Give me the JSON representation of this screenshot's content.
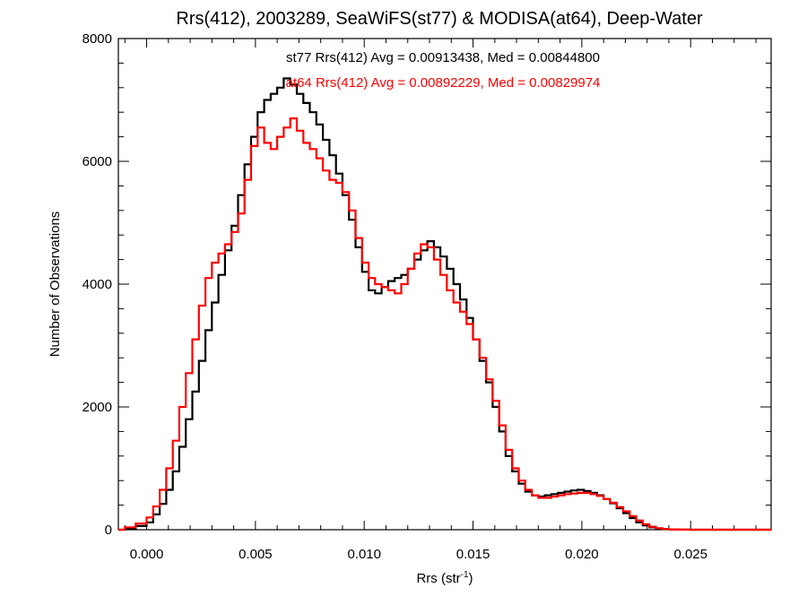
{
  "chart_data": {
    "type": "step",
    "title": "Rrs(412), 2003289, SeaWiFS(st77) & MODISA(at64), Deep-Water",
    "xlabel": "Rrs (str",
    "xlabel_sup": "-1",
    "xlabel_end": ")",
    "ylabel": "Number of Observations",
    "xlim": [
      -0.0013,
      0.0287
    ],
    "ylim": [
      0,
      8000
    ],
    "x_ticks": [
      0.0,
      0.005,
      0.01,
      0.015,
      0.02,
      0.025
    ],
    "x_tick_labels": [
      "0.000",
      "0.005",
      "0.010",
      "0.015",
      "0.020",
      "0.025"
    ],
    "y_ticks": [
      0,
      2000,
      4000,
      6000,
      8000
    ],
    "y_tick_labels": [
      "0",
      "2000",
      "4000",
      "6000",
      "8000"
    ],
    "annotations": [
      {
        "text": "st77 Rrs(412) Avg = 0.00913438, Med = 0.00844800",
        "color": "#000000"
      },
      {
        "text": "at64 Rrs(412) Avg = 0.00892229, Med = 0.00829974",
        "color": "#ff0000"
      }
    ],
    "series": [
      {
        "color": "#000000",
        "x": [
          -0.0013,
          -0.001,
          -0.0005,
          0.0,
          0.0003,
          0.0006,
          0.0009,
          0.0012,
          0.0015,
          0.0018,
          0.0021,
          0.0024,
          0.0027,
          0.003,
          0.0033,
          0.0036,
          0.0039,
          0.0042,
          0.0045,
          0.0048,
          0.0051,
          0.0054,
          0.0057,
          0.006,
          0.0063,
          0.0066,
          0.0069,
          0.0072,
          0.0075,
          0.0078,
          0.0081,
          0.0084,
          0.0087,
          0.009,
          0.0093,
          0.0096,
          0.0099,
          0.0102,
          0.0105,
          0.0108,
          0.0111,
          0.0114,
          0.0117,
          0.012,
          0.0123,
          0.0126,
          0.0129,
          0.0132,
          0.0135,
          0.0138,
          0.0141,
          0.0144,
          0.0147,
          0.015,
          0.0153,
          0.0156,
          0.0159,
          0.0162,
          0.0165,
          0.0168,
          0.0171,
          0.0174,
          0.0177,
          0.018,
          0.0183,
          0.0186,
          0.0189,
          0.0192,
          0.0195,
          0.0198,
          0.0201,
          0.0204,
          0.0207,
          0.021,
          0.0213,
          0.0216,
          0.0219,
          0.0222,
          0.0225,
          0.0228,
          0.0231,
          0.0234,
          0.0237,
          0.024,
          0.0245,
          0.025,
          0.026,
          0.0287
        ],
        "y": [
          0,
          20,
          60,
          120,
          250,
          420,
          650,
          950,
          1350,
          1800,
          2250,
          2750,
          3250,
          3700,
          4150,
          4550,
          4950,
          5450,
          5950,
          6400,
          6800,
          7000,
          7100,
          7200,
          7350,
          7250,
          7100,
          6950,
          6800,
          6600,
          6350,
          6100,
          5800,
          5450,
          5050,
          4600,
          4200,
          3900,
          3850,
          3950,
          4050,
          4100,
          4150,
          4250,
          4400,
          4550,
          4700,
          4600,
          4450,
          4250,
          4000,
          3750,
          3450,
          3100,
          2750,
          2400,
          2000,
          1600,
          1200,
          950,
          750,
          620,
          560,
          540,
          560,
          580,
          600,
          620,
          640,
          650,
          630,
          600,
          560,
          500,
          430,
          350,
          270,
          190,
          120,
          70,
          40,
          20,
          10,
          5,
          2,
          0,
          0,
          0
        ]
      },
      {
        "color": "#ff0000",
        "x": [
          -0.0013,
          -0.001,
          -0.0005,
          0.0,
          0.0003,
          0.0006,
          0.0009,
          0.0012,
          0.0015,
          0.0018,
          0.0021,
          0.0024,
          0.0027,
          0.003,
          0.0033,
          0.0036,
          0.0039,
          0.0042,
          0.0045,
          0.0048,
          0.0051,
          0.0054,
          0.0057,
          0.006,
          0.0063,
          0.0066,
          0.0069,
          0.0072,
          0.0075,
          0.0078,
          0.0081,
          0.0084,
          0.0087,
          0.009,
          0.0093,
          0.0096,
          0.0099,
          0.0102,
          0.0105,
          0.0108,
          0.0111,
          0.0114,
          0.0117,
          0.012,
          0.0123,
          0.0126,
          0.0129,
          0.0132,
          0.0135,
          0.0138,
          0.0141,
          0.0144,
          0.0147,
          0.015,
          0.0153,
          0.0156,
          0.0159,
          0.0162,
          0.0165,
          0.0168,
          0.0171,
          0.0174,
          0.0177,
          0.018,
          0.0183,
          0.0186,
          0.0189,
          0.0192,
          0.0195,
          0.0198,
          0.0201,
          0.0204,
          0.0207,
          0.021,
          0.0213,
          0.0216,
          0.0219,
          0.0222,
          0.0225,
          0.0228,
          0.0231,
          0.0234,
          0.0237,
          0.024,
          0.0245,
          0.025,
          0.026,
          0.0287
        ],
        "y": [
          0,
          40,
          100,
          200,
          380,
          650,
          1000,
          1450,
          2000,
          2550,
          3100,
          3650,
          4100,
          4350,
          4500,
          4650,
          4850,
          5150,
          5700,
          6250,
          6550,
          6300,
          6200,
          6400,
          6550,
          6700,
          6500,
          6300,
          6200,
          6050,
          5850,
          5700,
          5650,
          5500,
          5200,
          4750,
          4350,
          4100,
          4000,
          3950,
          3900,
          3850,
          4000,
          4250,
          4500,
          4650,
          4600,
          4400,
          4150,
          3900,
          3700,
          3550,
          3350,
          3100,
          2800,
          2450,
          2100,
          1700,
          1300,
          1000,
          800,
          650,
          560,
          520,
          520,
          540,
          560,
          580,
          590,
          600,
          600,
          580,
          550,
          500,
          440,
          370,
          300,
          220,
          150,
          90,
          50,
          25,
          12,
          6,
          2,
          0,
          0,
          0
        ]
      }
    ]
  }
}
